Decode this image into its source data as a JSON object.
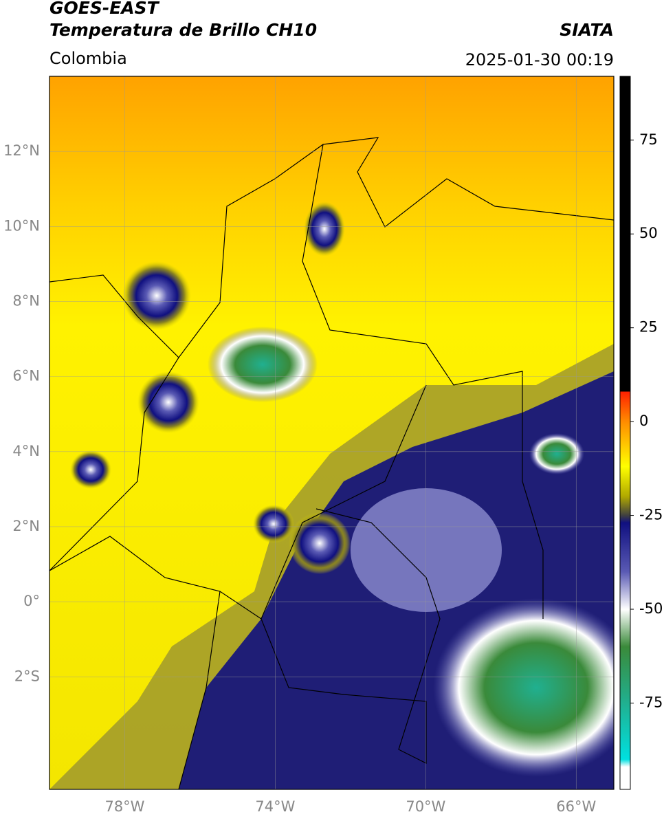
{
  "header": {
    "title": "GOES-EAST",
    "subtitle": "Temperatura de Brillo CH10",
    "source": "SIATA",
    "region": "Colombia",
    "datetime": "2025-01-30 00:19"
  },
  "map": {
    "xlim": [
      -80,
      -65
    ],
    "ylim": [
      -5,
      14
    ],
    "xticks": [
      {
        "value": -78,
        "label": "78°W"
      },
      {
        "value": -74,
        "label": "74°W"
      },
      {
        "value": -70,
        "label": "70°W"
      },
      {
        "value": -66,
        "label": "66°W"
      }
    ],
    "yticks": [
      {
        "value": 12,
        "label": "12°N"
      },
      {
        "value": 10,
        "label": "10°N"
      },
      {
        "value": 8,
        "label": "8°N"
      },
      {
        "value": 6,
        "label": "6°N"
      },
      {
        "value": 4,
        "label": "4°N"
      },
      {
        "value": 2,
        "label": "2°N"
      },
      {
        "value": 0,
        "label": "0°"
      },
      {
        "value": -2,
        "label": "2°S"
      }
    ],
    "grid": true
  },
  "colorbar": {
    "lim": [
      -98,
      92
    ],
    "ticks": [
      75,
      50,
      25,
      0,
      -25,
      -50,
      -75
    ],
    "stops": [
      {
        "value": 92,
        "color": "#000000"
      },
      {
        "value": 8,
        "color": "#000000"
      },
      {
        "value": 8,
        "color": "#ff2000"
      },
      {
        "value": 0,
        "color": "#ff8c00"
      },
      {
        "value": -12,
        "color": "#ffff00"
      },
      {
        "value": -20,
        "color": "#b0a800"
      },
      {
        "value": -25,
        "color": "#404040"
      },
      {
        "value": -27,
        "color": "#101080"
      },
      {
        "value": -40,
        "color": "#5a5ab4"
      },
      {
        "value": -50,
        "color": "#ffffff"
      },
      {
        "value": -60,
        "color": "#3a8a3a"
      },
      {
        "value": -75,
        "color": "#20b090"
      },
      {
        "value": -90,
        "color": "#00e0e0"
      },
      {
        "value": -92,
        "color": "#ffffff"
      },
      {
        "value": -98,
        "color": "#ffffff"
      }
    ]
  }
}
